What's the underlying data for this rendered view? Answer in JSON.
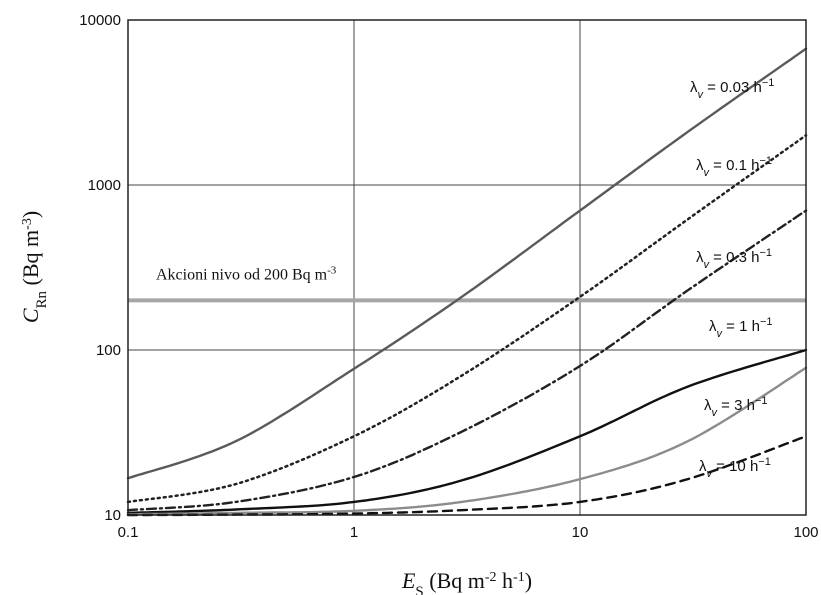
{
  "chart_data": {
    "type": "line",
    "x_scale": "log",
    "y_scale": "log",
    "xlim": [
      0.1,
      100
    ],
    "ylim": [
      10,
      10000
    ],
    "x_ticks": [
      "0.1",
      "1",
      "10",
      "100"
    ],
    "y_ticks": [
      "10",
      "100",
      "1000",
      "10000"
    ],
    "grid": true,
    "xlabel": {
      "main": "E",
      "sub": "S",
      "unit": " (Bq m",
      "sup1": "-2",
      "mid": " h",
      "sup2": "-1",
      "end": ")"
    },
    "ylabel": {
      "main": "C",
      "sub": "Rn",
      "unit": " (Bq m",
      "sup": "-3",
      "end": ")"
    },
    "annotation": {
      "text": "Akcioni nivo od 200 Bq m",
      "sup": "-3",
      "value": 200,
      "color": "#a6a6a6"
    },
    "series": [
      {
        "name": "λv = 0.03 h⁻¹",
        "symbol": "λ",
        "sub": "v",
        "rhs": " = 0.03 h",
        "sup": "−1",
        "style": "solid",
        "color": "#5a5a5a",
        "x": [
          0.1,
          0.3,
          1,
          3,
          10,
          30,
          100
        ],
        "y": [
          16.7,
          28,
          77,
          210,
          700,
          2100,
          6700
        ]
      },
      {
        "name": "λv = 0.1 h⁻¹",
        "symbol": "λ",
        "sub": "v",
        "rhs": " = 0.1 h",
        "sup": "−1",
        "style": "dotted",
        "color": "#222222",
        "x": [
          0.1,
          0.3,
          1,
          3,
          10,
          30,
          100
        ],
        "y": [
          12,
          15.4,
          30,
          70,
          210,
          620,
          2000
        ]
      },
      {
        "name": "λv = 0.3 h⁻¹",
        "symbol": "λ",
        "sub": "v",
        "rhs": " = 0.3 h",
        "sup": "−1",
        "style": "dashdot",
        "color": "#222222",
        "x": [
          0.1,
          0.3,
          1,
          3,
          10,
          30,
          100
        ],
        "y": [
          10.7,
          12,
          17,
          32,
          80,
          230,
          700
        ]
      },
      {
        "name": "λv = 1 h⁻¹",
        "symbol": "λ",
        "sub": "v",
        "rhs": " = 1 h",
        "sup": "−1",
        "style": "solid",
        "color": "#111111",
        "x": [
          0.1,
          0.3,
          1,
          3,
          10,
          30,
          100
        ],
        "y": [
          10.3,
          10.8,
          12,
          16.2,
          30,
          60,
          100
        ]
      },
      {
        "name": "λv = 3 h⁻¹",
        "symbol": "λ",
        "sub": "v",
        "rhs": " = 3 h",
        "sup": "−1",
        "style": "solid",
        "color": "#8c8c8c",
        "x": [
          0.1,
          0.3,
          1,
          3,
          10,
          30,
          100
        ],
        "y": [
          10.1,
          10.3,
          10.6,
          12,
          16.5,
          28,
          78
        ]
      },
      {
        "name": "λv = 10 h⁻¹",
        "symbol": "λ",
        "sub": "v",
        "rhs": " = 10 h",
        "sup": "−1",
        "style": "dashed",
        "color": "#111111",
        "x": [
          0.1,
          0.3,
          1,
          3,
          10,
          30,
          100
        ],
        "y": [
          10,
          10.05,
          10.2,
          10.7,
          12,
          16.5,
          30
        ]
      }
    ]
  }
}
